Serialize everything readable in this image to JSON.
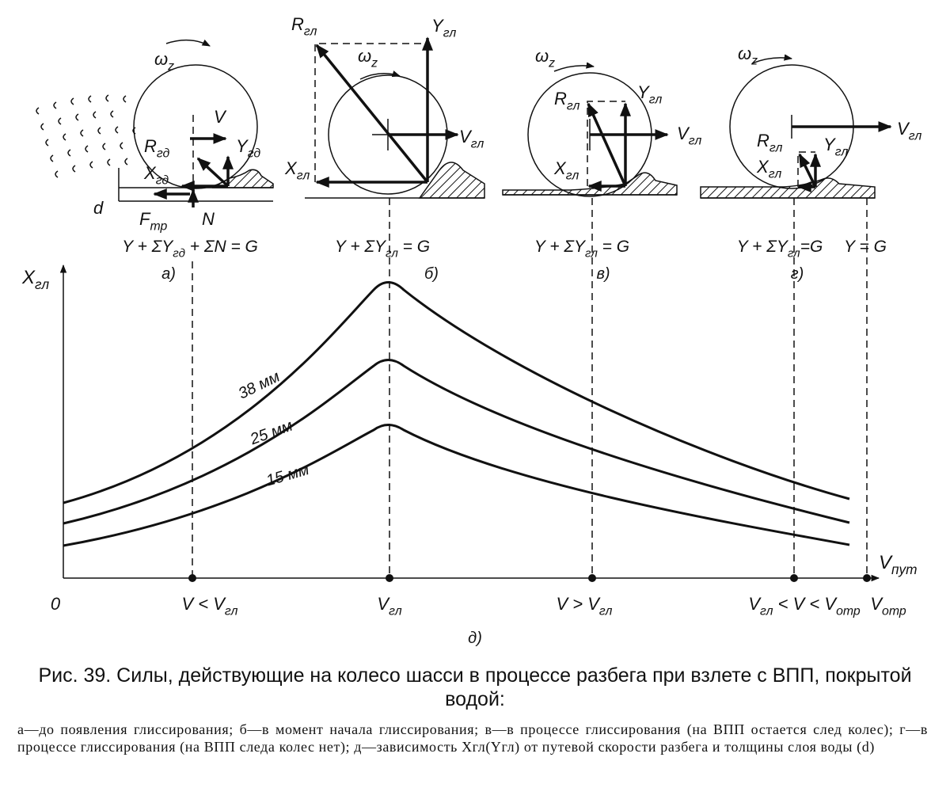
{
  "panels": [
    {
      "label": "а)",
      "equations": [
        [
          "Y + ΣY",
          "гд",
          " + ΣN = G"
        ]
      ],
      "forces": [
        [
          "ω",
          "z"
        ],
        [
          "V"
        ],
        [
          "R",
          "гд"
        ],
        [
          "Y",
          "гд"
        ],
        [
          "X",
          "гд"
        ],
        [
          "d"
        ],
        [
          "F",
          "тр"
        ],
        [
          "N"
        ]
      ]
    },
    {
      "label": "б)",
      "equations": [
        [
          "Y + ΣY",
          "гл",
          " = G"
        ]
      ],
      "forces": [
        [
          "R",
          "гл"
        ],
        [
          "Y",
          "гл"
        ],
        [
          "ω",
          "z"
        ],
        [
          "V",
          "гл"
        ],
        [
          "X",
          "гл"
        ]
      ]
    },
    {
      "label": "в)",
      "equations": [
        [
          "Y + ΣY",
          "гл",
          " = G"
        ]
      ],
      "forces": [
        [
          "ω",
          "z"
        ],
        [
          "R",
          "гл"
        ],
        [
          "Y",
          "гл"
        ],
        [
          "V",
          "гл"
        ],
        [
          "X",
          "гл"
        ]
      ]
    },
    {
      "label": "г)",
      "equations": [
        [
          "Y + ΣY",
          "гл",
          "=G"
        ],
        [
          "Y = G"
        ]
      ],
      "forces": [
        [
          "ω",
          "z"
        ],
        [
          "V",
          "гл"
        ],
        [
          "R",
          "гл"
        ],
        [
          "Y",
          "гл"
        ],
        [
          "X",
          "гл"
        ]
      ]
    }
  ],
  "graph": {
    "y_label": [
      "X",
      "гл"
    ],
    "x_label": [
      "V",
      "пут"
    ],
    "origin": "0",
    "x_marks": [
      [
        "V < V",
        "гл"
      ],
      [
        "V",
        "гл"
      ],
      [
        "V > V",
        "гл"
      ],
      [
        "V",
        "гл",
        " < V < V",
        "отр"
      ],
      [
        "V",
        "отр"
      ]
    ],
    "curves": [
      "38 мм",
      "25 мм",
      "15 мм"
    ],
    "label": "д)"
  },
  "caption": {
    "title": "Рис. 39. Силы, действующие на колесо шасси в процессе разбега при взлете с ВПП, покрытой водой:",
    "legend": "а—до появления глиссирования; б—в момент начала глиссирования; в—в процессе глиссирования (на ВПП остается след колес); г—в процессе глиссирования (на ВПП следа колес нет); д—зависимость Xгл(Yгл) от путевой скорости разбега и толщины слоя воды (d)"
  }
}
